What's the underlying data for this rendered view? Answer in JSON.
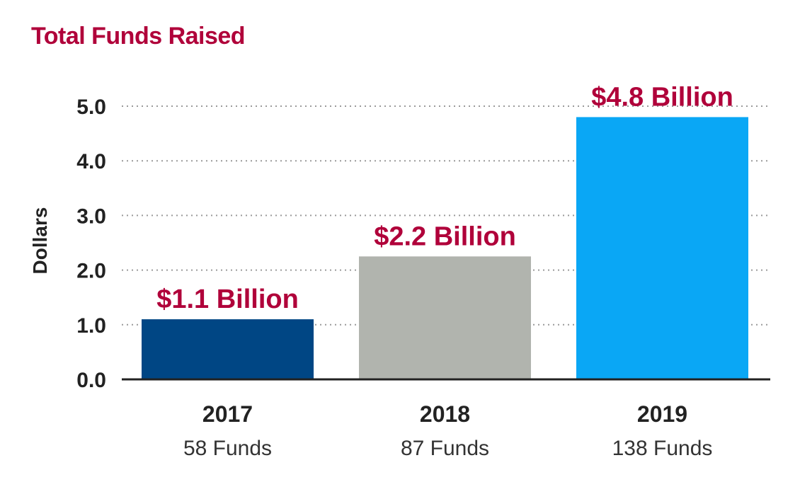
{
  "chart_data": {
    "type": "bar",
    "title": "Total Funds Raised",
    "ylabel": "Dollars",
    "xlabel": "",
    "ylim": [
      0,
      5
    ],
    "y_ticks": [
      "0.0",
      "1.0",
      "2.0",
      "3.0",
      "4.0",
      "5.0"
    ],
    "grid": "dotted horizontal",
    "categories": [
      "2017",
      "2018",
      "2019"
    ],
    "sublabels": [
      "58 Funds",
      "87 Funds",
      "138 Funds"
    ],
    "values": [
      1.1,
      2.25,
      4.8
    ],
    "data_labels": [
      "$1.1 Billion",
      "$2.2 Billion",
      "$4.8 Billion"
    ],
    "bar_colors": [
      "#004684",
      "#b1b4ae",
      "#0aa7f5"
    ]
  },
  "colors": {
    "title": "#b0003a",
    "data_label": "#b0003a",
    "axis": "#222222",
    "grid": "#9a9a9a"
  }
}
